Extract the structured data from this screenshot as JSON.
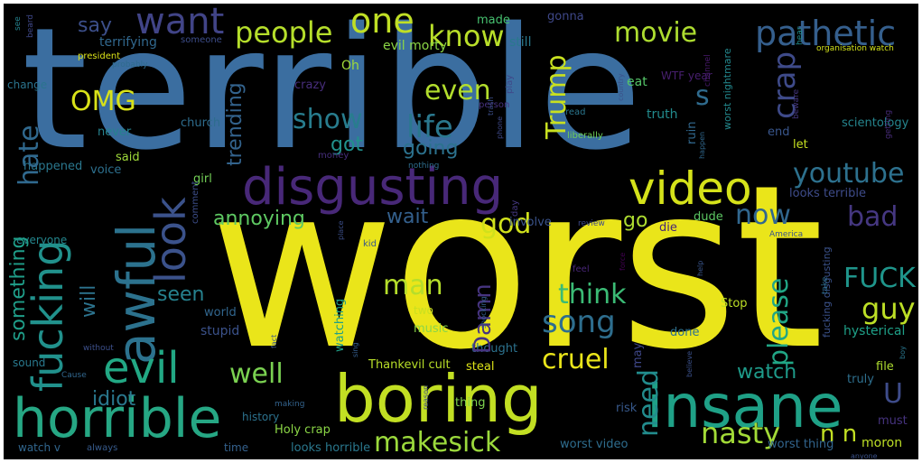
{
  "words": [
    {
      "id": "w01",
      "text": "terrible",
      "color": "#3b6ea0"
    },
    {
      "id": "w02",
      "text": "worst",
      "color": "#eae51a"
    },
    {
      "id": "w03",
      "text": "disgusting",
      "color": "#482878"
    },
    {
      "id": "w04",
      "text": "boring",
      "color": "#c2df23"
    },
    {
      "id": "w05",
      "text": "horrible",
      "color": "#26a784"
    },
    {
      "id": "w06",
      "text": "insane",
      "color": "#1fa187"
    },
    {
      "id": "w07",
      "text": "awful",
      "color": "#2c728e"
    },
    {
      "id": "w08",
      "text": "fucking",
      "color": "#21918c"
    },
    {
      "id": "w09",
      "text": "video",
      "color": "#d5e21a"
    },
    {
      "id": "w10",
      "text": "look",
      "color": "#3b528b"
    },
    {
      "id": "w11",
      "text": "evil",
      "color": "#22a884"
    },
    {
      "id": "w12",
      "text": "want",
      "color": "#414487"
    },
    {
      "id": "w13",
      "text": "one",
      "color": "#c0df25"
    },
    {
      "id": "w14",
      "text": "people",
      "color": "#b5de2b"
    },
    {
      "id": "w15",
      "text": "know",
      "color": "#b8de29"
    },
    {
      "id": "w16",
      "text": "pathetic",
      "color": "#355f8d"
    },
    {
      "id": "w17",
      "text": "movie",
      "color": "#addc30"
    },
    {
      "id": "w18",
      "text": "OMG",
      "color": "#d8e219"
    },
    {
      "id": "w19",
      "text": "even",
      "color": "#b2dd2d"
    },
    {
      "id": "w20",
      "text": "Trump",
      "color": "#c8e020"
    },
    {
      "id": "w21",
      "text": "crap",
      "color": "#3e4a89"
    },
    {
      "id": "w22",
      "text": "show",
      "color": "#287d8e"
    },
    {
      "id": "w23",
      "text": "life",
      "color": "#2a788e"
    },
    {
      "id": "w24",
      "text": "hate",
      "color": "#30698e"
    },
    {
      "id": "w25",
      "text": "youtube",
      "color": "#2d718e"
    },
    {
      "id": "w26",
      "text": "now",
      "color": "#31678e"
    },
    {
      "id": "w27",
      "text": "god",
      "color": "#d0e11c"
    },
    {
      "id": "w28",
      "text": "bad",
      "color": "#453781"
    },
    {
      "id": "w29",
      "text": "annoying",
      "color": "#5ec962"
    },
    {
      "id": "w30",
      "text": "FUCK",
      "color": "#1f958b"
    },
    {
      "id": "w31",
      "text": "song",
      "color": "#2e6e8e"
    },
    {
      "id": "w32",
      "text": "man",
      "color": "#b5de2b"
    },
    {
      "id": "w33",
      "text": "Damn",
      "color": "#463480"
    },
    {
      "id": "w34",
      "text": "think",
      "color": "#3bbb75"
    },
    {
      "id": "w35",
      "text": "please",
      "color": "#21a685"
    },
    {
      "id": "w36",
      "text": "guy",
      "color": "#bddf26"
    },
    {
      "id": "w37",
      "text": "cruel",
      "color": "#eae51a"
    },
    {
      "id": "w38",
      "text": "well",
      "color": "#7ad151"
    },
    {
      "id": "w39",
      "text": "watch",
      "color": "#1e9b8a"
    },
    {
      "id": "w40",
      "text": "idiot",
      "color": "#2a788e"
    },
    {
      "id": "w41",
      "text": "need",
      "color": "#228c8d"
    },
    {
      "id": "w42",
      "text": "nasty",
      "color": "#a2da37"
    },
    {
      "id": "w43",
      "text": "makesick",
      "color": "#9bd93c"
    },
    {
      "id": "w44",
      "text": "n n",
      "color": "#c2df23"
    },
    {
      "id": "w45",
      "text": "U",
      "color": "#3e4c8a"
    },
    {
      "id": "w46",
      "text": "say",
      "color": "#3c4f8a"
    },
    {
      "id": "w47",
      "text": "trending",
      "color": "#33638d"
    },
    {
      "id": "w48",
      "text": "got",
      "color": "#21918c"
    },
    {
      "id": "w49",
      "text": "going",
      "color": "#2c728e"
    },
    {
      "id": "w50",
      "text": "wait",
      "color": "#34608d"
    },
    {
      "id": "w51",
      "text": "go",
      "color": "#addc30"
    },
    {
      "id": "w52",
      "text": "seen",
      "color": "#26818e"
    },
    {
      "id": "w53",
      "text": "s",
      "color": "#2f6b8e"
    },
    {
      "id": "w54",
      "text": "something",
      "color": "#1f9e89"
    },
    {
      "id": "w55",
      "text": "will",
      "color": "#2c738e"
    },
    {
      "id": "w56",
      "text": "hysterical",
      "color": "#1fa088"
    },
    {
      "id": "w57",
      "text": "terrifying",
      "color": "#31688e"
    },
    {
      "id": "w58",
      "text": "Oh",
      "color": "#a0da39"
    },
    {
      "id": "w59",
      "text": "evil morty",
      "color": "#8bd646"
    },
    {
      "id": "w60",
      "text": "made",
      "color": "#46c06f"
    },
    {
      "id": "w61",
      "text": "still",
      "color": "#2a788e"
    },
    {
      "id": "w62",
      "text": "gonna",
      "color": "#3f4889"
    },
    {
      "id": "w63",
      "text": "eat",
      "color": "#54c568"
    },
    {
      "id": "w64",
      "text": "truth",
      "color": "#228b8d"
    },
    {
      "id": "w65",
      "text": "WTF year",
      "color": "#481f70"
    },
    {
      "id": "w66",
      "text": "crazy",
      "color": "#472d7b"
    },
    {
      "id": "w67",
      "text": "play",
      "color": "#3f4889"
    },
    {
      "id": "w68",
      "text": "church",
      "color": "#2e6d8e"
    },
    {
      "id": "w69",
      "text": "never",
      "color": "#26828e"
    },
    {
      "id": "w70",
      "text": "said",
      "color": "#9fda3a"
    },
    {
      "id": "w71",
      "text": "voice",
      "color": "#2d708e"
    },
    {
      "id": "w72",
      "text": "happened",
      "color": "#2a778e"
    },
    {
      "id": "w73",
      "text": "girl",
      "color": "#73d056"
    },
    {
      "id": "w74",
      "text": "comment",
      "color": "#3d4e8a"
    },
    {
      "id": "w75",
      "text": "scientology",
      "color": "#25858e"
    },
    {
      "id": "w76",
      "text": "let",
      "color": "#c5e021"
    },
    {
      "id": "w77",
      "text": "end",
      "color": "#39568c"
    },
    {
      "id": "w78",
      "text": "ruin",
      "color": "#31688e"
    },
    {
      "id": "w79",
      "text": "looks terrible",
      "color": "#3e4c8a"
    },
    {
      "id": "w80",
      "text": "dude",
      "color": "#5cc863"
    },
    {
      "id": "w81",
      "text": "die",
      "color": "#482576"
    },
    {
      "id": "w82",
      "text": "involve",
      "color": "#3a538b"
    },
    {
      "id": "w83",
      "text": "day",
      "color": "#453882"
    },
    {
      "id": "w84",
      "text": "everyone",
      "color": "#24878e"
    },
    {
      "id": "w85",
      "text": "sound",
      "color": "#29798e"
    },
    {
      "id": "w86",
      "text": "stupid",
      "color": "#3b528b"
    },
    {
      "id": "w87",
      "text": "world",
      "color": "#31668e"
    },
    {
      "id": "w88",
      "text": "music",
      "color": "#89d548"
    },
    {
      "id": "w89",
      "text": "two",
      "color": "#c8e020"
    },
    {
      "id": "w90",
      "text": "watching",
      "color": "#1f9f88"
    },
    {
      "id": "w91",
      "text": "thought",
      "color": "#2c728e"
    },
    {
      "id": "w92",
      "text": "Thankevil cult",
      "color": "#b8de29"
    },
    {
      "id": "w93",
      "text": "steal",
      "color": "#dde318"
    },
    {
      "id": "w94",
      "text": "thing",
      "color": "#7fd34e"
    },
    {
      "id": "w95",
      "text": "risk",
      "color": "#37598c"
    },
    {
      "id": "w96",
      "text": "may",
      "color": "#3f4788"
    },
    {
      "id": "w97",
      "text": "done",
      "color": "#2d708e"
    },
    {
      "id": "w98",
      "text": "Stop",
      "color": "#bddf26"
    },
    {
      "id": "w99",
      "text": "truly",
      "color": "#2e6f8e"
    },
    {
      "id": "w100",
      "text": "file",
      "color": "#addc30"
    },
    {
      "id": "w101",
      "text": "must",
      "color": "#46337f"
    },
    {
      "id": "w102",
      "text": "moron",
      "color": "#bddf26"
    },
    {
      "id": "w103",
      "text": "worst thing",
      "color": "#32658e"
    },
    {
      "id": "w104",
      "text": "worst video",
      "color": "#2e6d8e"
    },
    {
      "id": "w105",
      "text": "looks horrible",
      "color": "#2a788e"
    },
    {
      "id": "w106",
      "text": "Holy crap",
      "color": "#8bd646"
    },
    {
      "id": "w107",
      "text": "history",
      "color": "#2c728e"
    },
    {
      "id": "w108",
      "text": "time",
      "color": "#34618d"
    },
    {
      "id": "w109",
      "text": "watch v",
      "color": "#31668e"
    },
    {
      "id": "w110",
      "text": "always",
      "color": "#375b8d"
    },
    {
      "id": "w111",
      "text": "fucking disgusting",
      "color": "#3b528b"
    },
    {
      "id": "w112",
      "text": "worst nightmare",
      "color": "#23898e"
    },
    {
      "id": "w113",
      "text": "organisation watch",
      "color": "#d2e21b"
    },
    {
      "id": "w114",
      "text": "liberally",
      "color": "#6ece58"
    },
    {
      "id": "w115",
      "text": "president",
      "color": "#dce319"
    },
    {
      "id": "w116",
      "text": "change",
      "color": "#2b748e"
    },
    {
      "id": "w117",
      "text": "probably",
      "color": "#2f6c8e"
    },
    {
      "id": "w118",
      "text": "channel",
      "color": "#481a6c"
    },
    {
      "id": "w119",
      "text": "getting",
      "color": "#472c7a"
    },
    {
      "id": "w120",
      "text": "beware",
      "color": "#453781"
    },
    {
      "id": "w121",
      "text": "hear",
      "color": "#21908d"
    },
    {
      "id": "w122",
      "text": "someone",
      "color": "#3d4d8a"
    },
    {
      "id": "w123",
      "text": "see",
      "color": "#25838e"
    },
    {
      "id": "w124",
      "text": "beard",
      "color": "#3f4889"
    },
    {
      "id": "w125",
      "text": "money",
      "color": "#472f7d"
    },
    {
      "id": "w126",
      "text": "nothing",
      "color": "#2e6e8e"
    },
    {
      "id": "w127",
      "text": "person",
      "color": "#46327e"
    },
    {
      "id": "w128",
      "text": "phone",
      "color": "#3e4989"
    },
    {
      "id": "w129",
      "text": "trash",
      "color": "#3c4f8a"
    },
    {
      "id": "w130",
      "text": "read",
      "color": "#2a768e"
    },
    {
      "id": "w131",
      "text": "country",
      "color": "#3b528b"
    },
    {
      "id": "w132",
      "text": "happen",
      "color": "#31688e"
    },
    {
      "id": "w133",
      "text": "kid",
      "color": "#38588c"
    },
    {
      "id": "w134",
      "text": "place",
      "color": "#3c4f8a"
    },
    {
      "id": "w135",
      "text": "review",
      "color": "#3e4a89"
    },
    {
      "id": "w136",
      "text": "America",
      "color": "#3a548c"
    },
    {
      "id": "w137",
      "text": "feel",
      "color": "#482677"
    },
    {
      "id": "w138",
      "text": "force",
      "color": "#440154"
    },
    {
      "id": "w139",
      "text": "take",
      "color": "#2e6d8e"
    },
    {
      "id": "w140",
      "text": "help",
      "color": "#39558c"
    },
    {
      "id": "w141",
      "text": "believe",
      "color": "#3b518b"
    },
    {
      "id": "w142",
      "text": "shocking",
      "color": "#34618d"
    },
    {
      "id": "w143",
      "text": "sing",
      "color": "#355e8d"
    },
    {
      "id": "w144",
      "text": "fact",
      "color": "#39558c"
    },
    {
      "id": "w145",
      "text": "Cause",
      "color": "#31678e"
    },
    {
      "id": "w146",
      "text": "without",
      "color": "#3c4f8a"
    },
    {
      "id": "w147",
      "text": "making",
      "color": "#33638d"
    },
    {
      "id": "w148",
      "text": "reason",
      "color": "#3e4989"
    },
    {
      "id": "w149",
      "text": "boy",
      "color": "#2a778e"
    },
    {
      "id": "w150",
      "text": "anyone",
      "color": "#3b528b"
    }
  ]
}
